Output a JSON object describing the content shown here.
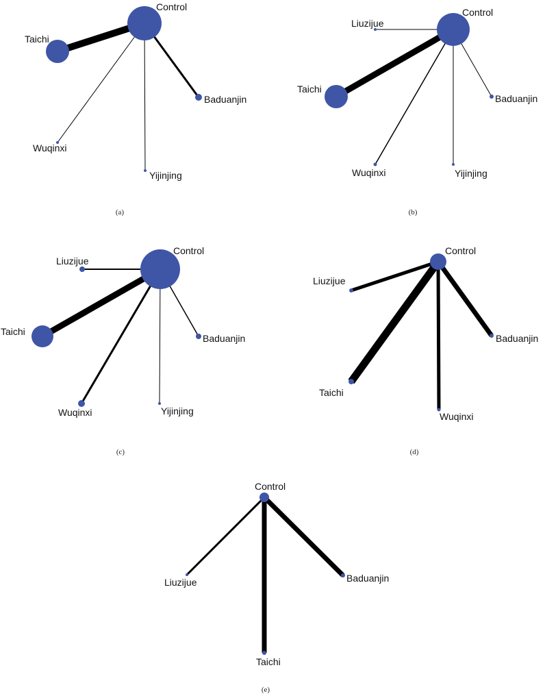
{
  "panels": [
    {
      "label": "(a)",
      "nodes": [
        {
          "id": "control",
          "name": "Control",
          "size": "large"
        },
        {
          "id": "taichi",
          "name": "Taichi",
          "size": "medium"
        },
        {
          "id": "baduanjin",
          "name": "Baduanjin",
          "size": "small"
        },
        {
          "id": "wuqinxi",
          "name": "Wuqinxi",
          "size": "tiny"
        },
        {
          "id": "yijinjing",
          "name": "Yijinjing",
          "size": "tiny"
        }
      ],
      "edges": [
        {
          "from": "control",
          "to": "taichi",
          "weight": "heavy"
        },
        {
          "from": "control",
          "to": "baduanjin",
          "weight": "medium"
        },
        {
          "from": "control",
          "to": "wuqinxi",
          "weight": "thin"
        },
        {
          "from": "control",
          "to": "yijinjing",
          "weight": "thin"
        }
      ]
    },
    {
      "label": "(b)",
      "nodes": [
        {
          "id": "control",
          "name": "Control",
          "size": "large"
        },
        {
          "id": "liuzijue",
          "name": "Liuzijue",
          "size": "tiny"
        },
        {
          "id": "taichi",
          "name": "Taichi",
          "size": "medium"
        },
        {
          "id": "baduanjin",
          "name": "Baduanjin",
          "size": "tiny"
        },
        {
          "id": "wuqinxi",
          "name": "Wuqinxi",
          "size": "tiny"
        },
        {
          "id": "yijinjing",
          "name": "Yijinjing",
          "size": "tiny"
        }
      ],
      "edges": [
        {
          "from": "control",
          "to": "liuzijue",
          "weight": "thin"
        },
        {
          "from": "control",
          "to": "taichi",
          "weight": "heavy"
        },
        {
          "from": "control",
          "to": "baduanjin",
          "weight": "thin"
        },
        {
          "from": "control",
          "to": "wuqinxi",
          "weight": "thin"
        },
        {
          "from": "control",
          "to": "yijinjing",
          "weight": "thin"
        }
      ]
    },
    {
      "label": "(c)",
      "nodes": [
        {
          "id": "control",
          "name": "Control",
          "size": "large"
        },
        {
          "id": "liuzijue",
          "name": "Liuzijue",
          "size": "small"
        },
        {
          "id": "taichi",
          "name": "Taichi",
          "size": "medium"
        },
        {
          "id": "baduanjin",
          "name": "Baduanjin",
          "size": "small"
        },
        {
          "id": "wuqinxi",
          "name": "Wuqinxi",
          "size": "small"
        },
        {
          "id": "yijinjing",
          "name": "Yijinjing",
          "size": "tiny"
        }
      ],
      "edges": [
        {
          "from": "control",
          "to": "liuzijue",
          "weight": "thin"
        },
        {
          "from": "control",
          "to": "taichi",
          "weight": "heavy"
        },
        {
          "from": "control",
          "to": "baduanjin",
          "weight": "thin"
        },
        {
          "from": "control",
          "to": "wuqinxi",
          "weight": "medium"
        },
        {
          "from": "control",
          "to": "yijinjing",
          "weight": "thin"
        }
      ]
    },
    {
      "label": "(d)",
      "nodes": [
        {
          "id": "control",
          "name": "Control",
          "size": "medium"
        },
        {
          "id": "liuzijue",
          "name": "Liuzijue",
          "size": "tiny"
        },
        {
          "id": "taichi",
          "name": "Taichi",
          "size": "tiny"
        },
        {
          "id": "baduanjin",
          "name": "Baduanjin",
          "size": "tiny"
        },
        {
          "id": "wuqinxi",
          "name": "Wuqinxi",
          "size": "tiny"
        }
      ],
      "edges": [
        {
          "from": "control",
          "to": "liuzijue",
          "weight": "medium"
        },
        {
          "from": "control",
          "to": "taichi",
          "weight": "heavy"
        },
        {
          "from": "control",
          "to": "baduanjin",
          "weight": "medium"
        },
        {
          "from": "control",
          "to": "wuqinxi",
          "weight": "medium"
        }
      ]
    },
    {
      "label": "(e)",
      "nodes": [
        {
          "id": "control",
          "name": "Control",
          "size": "small"
        },
        {
          "id": "liuzijue",
          "name": "Liuzijue",
          "size": "tiny"
        },
        {
          "id": "baduanjin",
          "name": "Baduanjin",
          "size": "tiny"
        },
        {
          "id": "taichi",
          "name": "Taichi",
          "size": "tiny"
        }
      ],
      "edges": [
        {
          "from": "control",
          "to": "liuzijue",
          "weight": "thin"
        },
        {
          "from": "control",
          "to": "baduanjin",
          "weight": "medium"
        },
        {
          "from": "control",
          "to": "taichi",
          "weight": "medium"
        }
      ]
    }
  ],
  "colors": {
    "node": "#3f55a6",
    "edge": "#000000"
  }
}
